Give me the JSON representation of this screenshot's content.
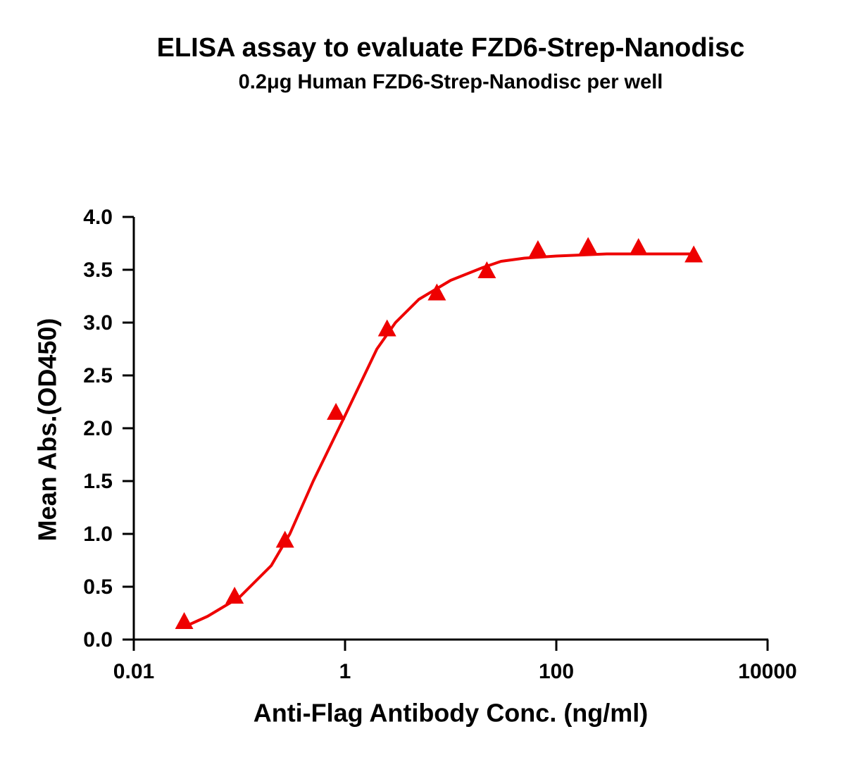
{
  "chart_data": {
    "type": "scatter",
    "title": "ELISA assay to evaluate FZD6-Strep-Nanodisc",
    "subtitle": "0.2μg Human FZD6-Strep-Nanodisc per well",
    "x_label": "Anti-Flag Antibody Conc. (ng/ml)",
    "y_label": "Mean Abs.(OD450)",
    "x_scale": "log",
    "xlim": [
      0.01,
      10000
    ],
    "xticks": [
      0.01,
      1,
      100,
      10000
    ],
    "ylim": [
      0,
      4
    ],
    "yticks": [
      {
        "value": 0,
        "label": "0.0"
      },
      {
        "value": 0.5,
        "label": "0.5"
      },
      {
        "value": 1,
        "label": "1.0"
      },
      {
        "value": 1.5,
        "label": "1.5"
      },
      {
        "value": 2,
        "label": "2.0"
      },
      {
        "value": 2.5,
        "label": "2.5"
      },
      {
        "value": 3,
        "label": "3.0"
      },
      {
        "value": 3.5,
        "label": "3.5"
      },
      {
        "value": 4,
        "label": "4.0"
      }
    ],
    "color": "#ee0000",
    "x": [
      0.03,
      0.09,
      0.27,
      0.82,
      2.5,
      7.4,
      22,
      67,
      200,
      600,
      2000
    ],
    "values": [
      0.16,
      0.4,
      0.93,
      2.14,
      2.93,
      3.27,
      3.48,
      3.68,
      3.71,
      3.7,
      3.63
    ],
    "fit": {
      "x": [
        0.03,
        0.05,
        0.1,
        0.2,
        0.3,
        0.5,
        1,
        2,
        3,
        5,
        10,
        20,
        30,
        50,
        100,
        300,
        2000
      ],
      "values": [
        0.12,
        0.22,
        0.4,
        0.7,
        1.0,
        1.5,
        2.12,
        2.75,
        3.0,
        3.22,
        3.4,
        3.52,
        3.58,
        3.61,
        3.63,
        3.65,
        3.65
      ]
    }
  }
}
